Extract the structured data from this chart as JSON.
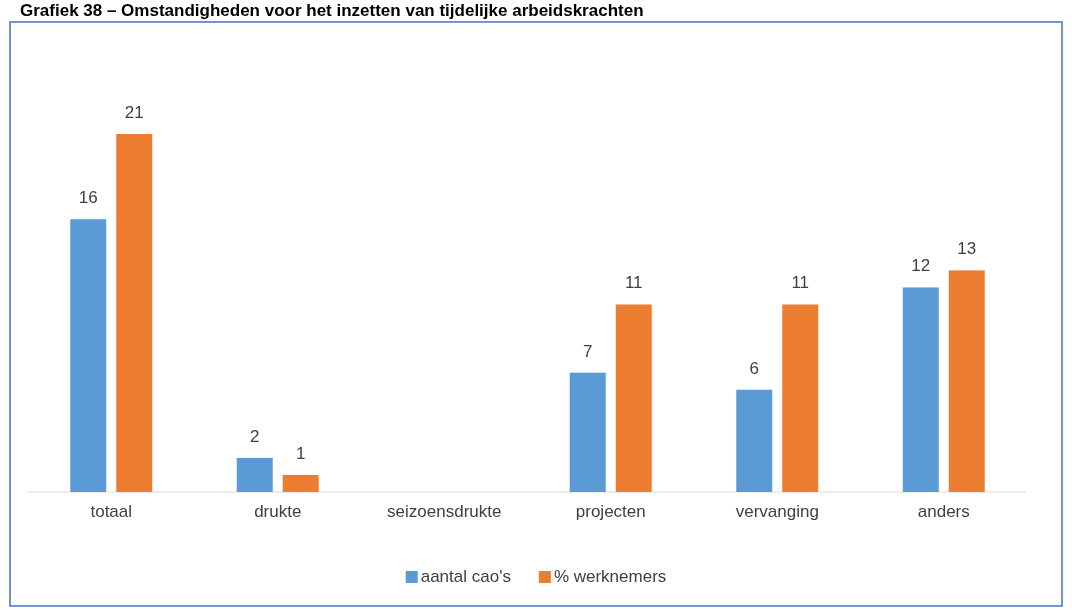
{
  "chart_data": {
    "type": "bar",
    "title": "Grafiek 38 – Omstandigheden voor het inzetten van tijdelijke arbeidskrachten",
    "categories": [
      "totaal",
      "drukte",
      "seizoensdrukte",
      "projecten",
      "vervanging",
      "anders"
    ],
    "series": [
      {
        "name": "aantal cao's",
        "color": "#5b9bd5",
        "values": [
          16,
          2,
          null,
          7,
          6,
          12
        ]
      },
      {
        "name": "% werknemers",
        "color": "#ed7d31",
        "values": [
          21,
          1,
          null,
          11,
          11,
          13
        ]
      }
    ],
    "data_labels": true,
    "legend": "bottom"
  }
}
